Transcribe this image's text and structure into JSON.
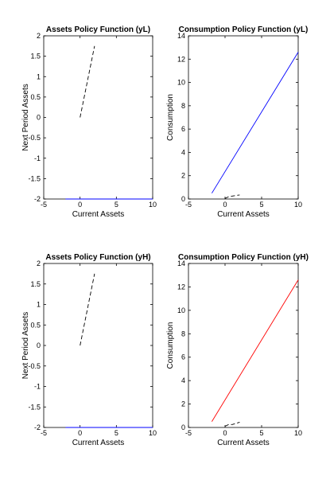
{
  "chart_data": [
    {
      "type": "line",
      "title": "Assets Policy Function (yL)",
      "xlabel": "Current Assets",
      "ylabel": "Next Period Assets",
      "xlim": [
        -5,
        10
      ],
      "ylim": [
        -2,
        2
      ],
      "xticks": [
        "-5",
        "0",
        "5",
        "10"
      ],
      "yticks": [
        "-2",
        "-1.5",
        "-1",
        "-0.5",
        "0",
        "0.5",
        "1",
        "1.5",
        "2"
      ],
      "grid": false,
      "series": [
        {
          "style": "solid",
          "color": "#0000ff",
          "x": [
            -2,
            10
          ],
          "y": [
            -2,
            -2
          ]
        },
        {
          "style": "dashed",
          "color": "#000000",
          "x": [
            0,
            2
          ],
          "y": [
            0,
            1.75
          ]
        }
      ]
    },
    {
      "type": "line",
      "title": "Consumption Policy Function (yL)",
      "xlabel": "Current Assets",
      "ylabel": "Consumption",
      "xlim": [
        -5,
        10
      ],
      "ylim": [
        0,
        14
      ],
      "xticks": [
        "-5",
        "0",
        "5",
        "10"
      ],
      "yticks": [
        "0",
        "2",
        "4",
        "6",
        "8",
        "10",
        "12",
        "14"
      ],
      "grid": false,
      "series": [
        {
          "style": "solid",
          "color": "#0000ff",
          "x": [
            -1.8,
            10
          ],
          "y": [
            0.5,
            12.6
          ]
        },
        {
          "style": "dashed",
          "color": "#000000",
          "x": [
            0,
            0.5,
            1,
            2
          ],
          "y": [
            0.05,
            0.2,
            0.25,
            0.35
          ]
        }
      ]
    },
    {
      "type": "line",
      "title": "Assets Policy Function (yH)",
      "xlabel": "Current Assets",
      "ylabel": "Next Period Assets",
      "xlim": [
        -5,
        10
      ],
      "ylim": [
        -2,
        2
      ],
      "xticks": [
        "-5",
        "0",
        "5",
        "10"
      ],
      "yticks": [
        "-2",
        "-1.5",
        "-1",
        "-0.5",
        "0",
        "0.5",
        "1",
        "1.5",
        "2"
      ],
      "grid": false,
      "series": [
        {
          "style": "solid",
          "color": "#0000ff",
          "x": [
            -2,
            10
          ],
          "y": [
            -2,
            -2
          ]
        },
        {
          "style": "dashed",
          "color": "#000000",
          "x": [
            0,
            2
          ],
          "y": [
            0,
            1.75
          ]
        }
      ]
    },
    {
      "type": "line",
      "title": "Consumption Policy Function (yH)",
      "xlabel": "Current Assets",
      "ylabel": "Consumption",
      "xlim": [
        -5,
        10
      ],
      "ylim": [
        0,
        14
      ],
      "xticks": [
        "-5",
        "0",
        "5",
        "10"
      ],
      "yticks": [
        "0",
        "2",
        "4",
        "6",
        "8",
        "10",
        "12",
        "14"
      ],
      "grid": false,
      "series": [
        {
          "style": "solid",
          "color": "#ff0000",
          "x": [
            -1.8,
            10
          ],
          "y": [
            0.5,
            12.6
          ]
        },
        {
          "style": "dashed",
          "color": "#000000",
          "x": [
            0,
            0.5,
            1,
            2
          ],
          "y": [
            0.1,
            0.25,
            0.25,
            0.45
          ]
        }
      ]
    }
  ]
}
